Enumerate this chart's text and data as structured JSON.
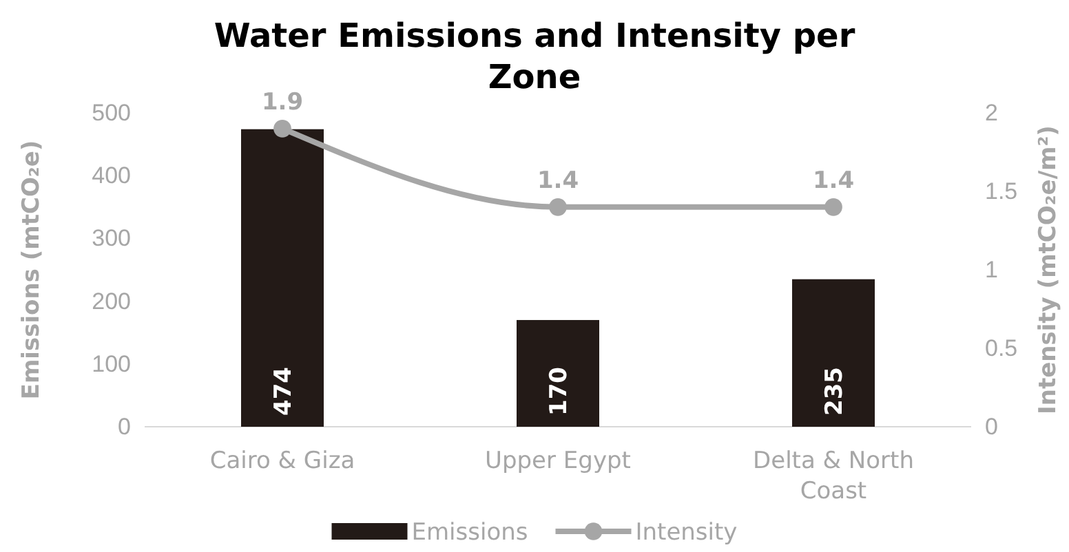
{
  "chart_data": {
    "type": "bar",
    "title": "Water Emissions and Intensity per Zone",
    "ylabel": "Emissions (mtCO₂e)",
    "y2label": "Intensity (mtCO₂e/m²)",
    "categories": [
      "Cairo & Giza",
      "Upper Egypt",
      "Delta & North Coast"
    ],
    "series": [
      {
        "name": "Emissions",
        "color": "#231a17",
        "values": [
          474,
          170,
          235
        ]
      },
      {
        "name": "Intensity",
        "type": "line",
        "axis": "y2",
        "color": "#a6a6a6",
        "values": [
          1.9,
          1.4,
          1.4
        ]
      }
    ],
    "ylim": [
      0,
      500
    ],
    "yticks": [
      0,
      100,
      200,
      300,
      400,
      500
    ],
    "y2lim": [
      0,
      2
    ],
    "y2ticks": [
      0,
      0.5,
      1,
      1.5,
      2
    ],
    "data_labels": true,
    "legend": "bottom",
    "marker": "circle",
    "grid": false
  }
}
